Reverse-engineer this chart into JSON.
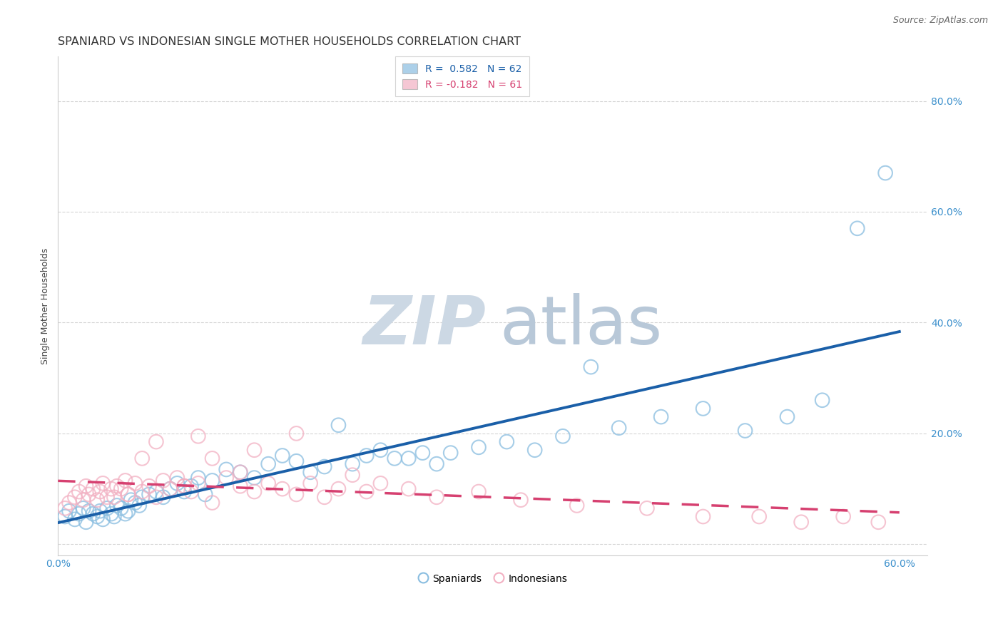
{
  "title": "SPANIARD VS INDONESIAN SINGLE MOTHER HOUSEHOLDS CORRELATION CHART",
  "source": "Source: ZipAtlas.com",
  "ylabel": "Single Mother Households",
  "xlim": [
    0.0,
    0.62
  ],
  "ylim": [
    -0.02,
    0.88
  ],
  "blue_color": "#89bde0",
  "blue_edge_color": "#7ab0d4",
  "blue_line_color": "#1a5fa8",
  "pink_color": "#f2b0c2",
  "pink_edge_color": "#e898b0",
  "pink_line_color": "#d64070",
  "legend_blue_R": "0.582",
  "legend_blue_N": "62",
  "legend_pink_R": "-0.182",
  "legend_pink_N": "61",
  "spaniards_label": "Spaniards",
  "indonesians_label": "Indonesians",
  "watermark_zip_color": "#ccd8e4",
  "watermark_atlas_color": "#b8c8d8",
  "blue_scatter_x": [
    0.005,
    0.008,
    0.012,
    0.015,
    0.018,
    0.02,
    0.022,
    0.025,
    0.028,
    0.03,
    0.032,
    0.035,
    0.038,
    0.04,
    0.042,
    0.045,
    0.048,
    0.05,
    0.052,
    0.055,
    0.058,
    0.06,
    0.065,
    0.07,
    0.075,
    0.08,
    0.085,
    0.09,
    0.095,
    0.1,
    0.105,
    0.11,
    0.12,
    0.13,
    0.14,
    0.15,
    0.16,
    0.17,
    0.18,
    0.19,
    0.2,
    0.21,
    0.22,
    0.23,
    0.24,
    0.25,
    0.26,
    0.27,
    0.28,
    0.3,
    0.32,
    0.34,
    0.36,
    0.38,
    0.4,
    0.43,
    0.46,
    0.49,
    0.52,
    0.545,
    0.57,
    0.59
  ],
  "blue_scatter_y": [
    0.05,
    0.06,
    0.045,
    0.055,
    0.065,
    0.04,
    0.06,
    0.055,
    0.05,
    0.06,
    0.045,
    0.065,
    0.055,
    0.05,
    0.07,
    0.065,
    0.055,
    0.06,
    0.08,
    0.075,
    0.07,
    0.085,
    0.09,
    0.095,
    0.085,
    0.1,
    0.11,
    0.095,
    0.105,
    0.12,
    0.09,
    0.115,
    0.135,
    0.13,
    0.12,
    0.145,
    0.16,
    0.15,
    0.13,
    0.14,
    0.215,
    0.145,
    0.16,
    0.17,
    0.155,
    0.155,
    0.165,
    0.145,
    0.165,
    0.175,
    0.185,
    0.17,
    0.195,
    0.32,
    0.21,
    0.23,
    0.245,
    0.205,
    0.23,
    0.26,
    0.57,
    0.67
  ],
  "pink_scatter_x": [
    0.005,
    0.008,
    0.012,
    0.015,
    0.018,
    0.02,
    0.022,
    0.025,
    0.028,
    0.03,
    0.032,
    0.035,
    0.038,
    0.04,
    0.042,
    0.045,
    0.048,
    0.05,
    0.055,
    0.06,
    0.065,
    0.07,
    0.075,
    0.08,
    0.085,
    0.09,
    0.095,
    0.1,
    0.11,
    0.12,
    0.13,
    0.14,
    0.15,
    0.16,
    0.17,
    0.18,
    0.19,
    0.2,
    0.21,
    0.22,
    0.23,
    0.25,
    0.27,
    0.3,
    0.33,
    0.37,
    0.42,
    0.46,
    0.5,
    0.53,
    0.56,
    0.585,
    0.07,
    0.1,
    0.14,
    0.17,
    0.06,
    0.09,
    0.13,
    0.05,
    0.11
  ],
  "pink_scatter_y": [
    0.065,
    0.075,
    0.085,
    0.095,
    0.08,
    0.105,
    0.09,
    0.1,
    0.08,
    0.095,
    0.11,
    0.085,
    0.1,
    0.085,
    0.105,
    0.1,
    0.115,
    0.09,
    0.11,
    0.095,
    0.105,
    0.085,
    0.115,
    0.1,
    0.12,
    0.105,
    0.095,
    0.11,
    0.155,
    0.12,
    0.105,
    0.095,
    0.11,
    0.1,
    0.09,
    0.11,
    0.085,
    0.1,
    0.125,
    0.095,
    0.11,
    0.1,
    0.085,
    0.095,
    0.08,
    0.07,
    0.065,
    0.05,
    0.05,
    0.04,
    0.05,
    0.04,
    0.185,
    0.195,
    0.17,
    0.2,
    0.155,
    0.105,
    0.13,
    0.09,
    0.075
  ],
  "title_fontsize": 11.5,
  "source_fontsize": 9,
  "ylabel_fontsize": 9,
  "tick_fontsize": 10,
  "legend_fontsize": 10,
  "watermark_fontsize": 68,
  "background_color": "#ffffff",
  "grid_color": "#cccccc",
  "tick_color": "#3a8fcc"
}
